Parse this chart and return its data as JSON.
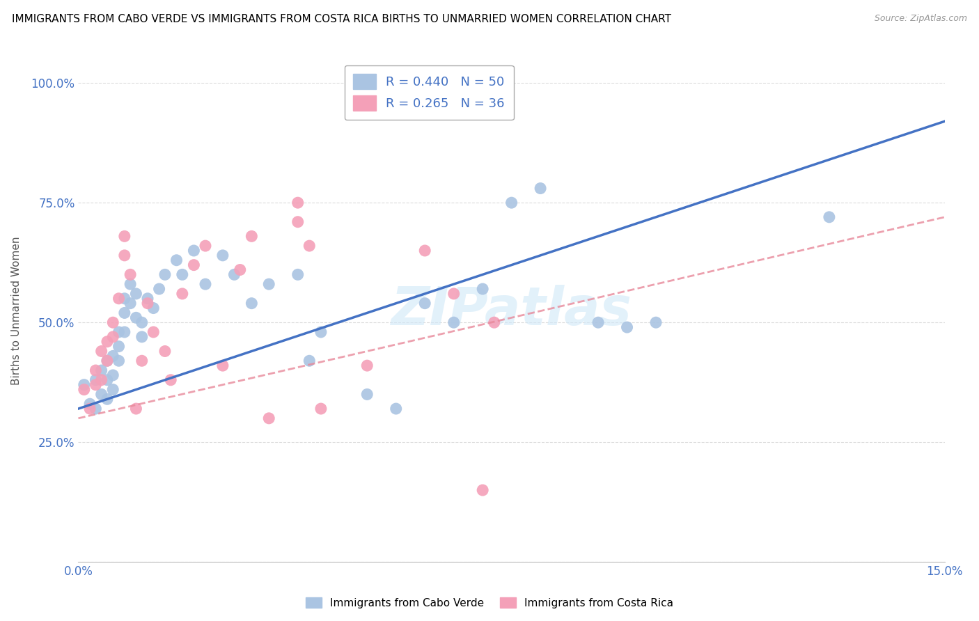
{
  "title": "IMMIGRANTS FROM CABO VERDE VS IMMIGRANTS FROM COSTA RICA BIRTHS TO UNMARRIED WOMEN CORRELATION CHART",
  "source": "Source: ZipAtlas.com",
  "ylabel": "Births to Unmarried Women",
  "xlim": [
    0.0,
    0.15
  ],
  "ylim": [
    0.0,
    1.05
  ],
  "xticks": [
    0.0,
    0.025,
    0.05,
    0.075,
    0.1,
    0.125,
    0.15
  ],
  "xticklabels": [
    "0.0%",
    "",
    "",
    "",
    "",
    "",
    "15.0%"
  ],
  "yticks": [
    0.0,
    0.25,
    0.5,
    0.75,
    1.0
  ],
  "yticklabels": [
    "",
    "25.0%",
    "50.0%",
    "75.0%",
    "100.0%"
  ],
  "cabo_verde_R": 0.44,
  "cabo_verde_N": 50,
  "costa_rica_R": 0.265,
  "costa_rica_N": 36,
  "cabo_verde_color": "#aac4e2",
  "costa_rica_color": "#f4a0b8",
  "cabo_verde_line_color": "#4472c4",
  "costa_rica_line_color": "#e8899a",
  "watermark_color": "#d0e8f8",
  "watermark": "ZIPatlas",
  "cabo_verde_x": [
    0.001,
    0.002,
    0.003,
    0.003,
    0.004,
    0.004,
    0.005,
    0.005,
    0.005,
    0.006,
    0.006,
    0.006,
    0.007,
    0.007,
    0.007,
    0.008,
    0.008,
    0.008,
    0.009,
    0.009,
    0.01,
    0.01,
    0.011,
    0.011,
    0.012,
    0.013,
    0.014,
    0.015,
    0.017,
    0.018,
    0.02,
    0.022,
    0.025,
    0.027,
    0.03,
    0.033,
    0.038,
    0.04,
    0.042,
    0.05,
    0.055,
    0.06,
    0.065,
    0.07,
    0.075,
    0.08,
    0.09,
    0.095,
    0.1,
    0.13
  ],
  "cabo_verde_y": [
    0.37,
    0.33,
    0.38,
    0.32,
    0.4,
    0.35,
    0.42,
    0.38,
    0.34,
    0.43,
    0.39,
    0.36,
    0.48,
    0.45,
    0.42,
    0.55,
    0.52,
    0.48,
    0.58,
    0.54,
    0.56,
    0.51,
    0.5,
    0.47,
    0.55,
    0.53,
    0.57,
    0.6,
    0.63,
    0.6,
    0.65,
    0.58,
    0.64,
    0.6,
    0.54,
    0.58,
    0.6,
    0.42,
    0.48,
    0.35,
    0.32,
    0.54,
    0.5,
    0.57,
    0.75,
    0.78,
    0.5,
    0.49,
    0.5,
    0.72
  ],
  "costa_rica_x": [
    0.001,
    0.002,
    0.003,
    0.003,
    0.004,
    0.004,
    0.005,
    0.005,
    0.006,
    0.006,
    0.007,
    0.008,
    0.008,
    0.009,
    0.01,
    0.011,
    0.012,
    0.013,
    0.015,
    0.016,
    0.018,
    0.02,
    0.022,
    0.025,
    0.028,
    0.03,
    0.033,
    0.038,
    0.04,
    0.042,
    0.05,
    0.06,
    0.065,
    0.07,
    0.038,
    0.072
  ],
  "costa_rica_y": [
    0.36,
    0.32,
    0.4,
    0.37,
    0.44,
    0.38,
    0.46,
    0.42,
    0.5,
    0.47,
    0.55,
    0.68,
    0.64,
    0.6,
    0.32,
    0.42,
    0.54,
    0.48,
    0.44,
    0.38,
    0.56,
    0.62,
    0.66,
    0.41,
    0.61,
    0.68,
    0.3,
    0.71,
    0.66,
    0.32,
    0.41,
    0.65,
    0.56,
    0.15,
    0.75,
    0.5
  ],
  "cabo_verde_intercept": 0.32,
  "cabo_verde_slope": 4.0,
  "costa_rica_intercept": 0.3,
  "costa_rica_slope": 2.8
}
